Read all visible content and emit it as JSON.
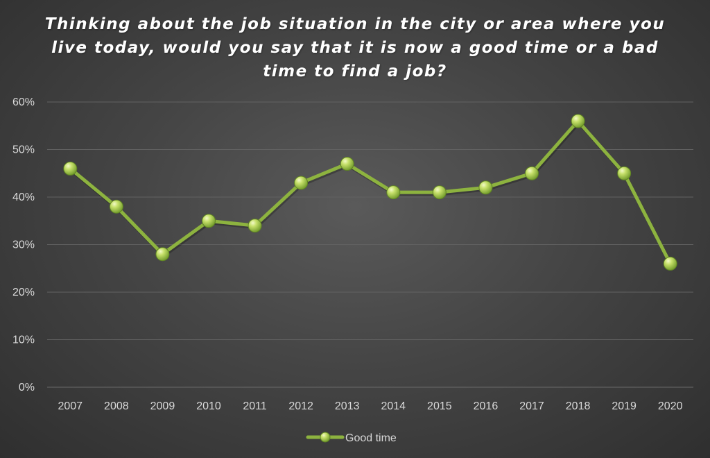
{
  "chart_data": {
    "type": "line",
    "title": "Thinking about the job situation in the city or area where you live today, would you say that it is now a good time or a bad time to find a job?",
    "categories": [
      "2007",
      "2008",
      "2009",
      "2010",
      "2011",
      "2012",
      "2013",
      "2014",
      "2015",
      "2016",
      "2017",
      "2018",
      "2019",
      "2020"
    ],
    "series": [
      {
        "name": "Good time",
        "color": "#8db33f",
        "values": [
          46,
          38,
          28,
          35,
          34,
          43,
          47,
          41,
          41,
          42,
          45,
          56,
          45,
          26
        ]
      }
    ],
    "ylim": [
      0,
      60
    ],
    "yticks": [
      "0%",
      "10%",
      "20%",
      "30%",
      "40%",
      "50%",
      "60%"
    ],
    "ytick_values": [
      0,
      10,
      20,
      30,
      40,
      50,
      60
    ],
    "xlabel": "",
    "ylabel": "",
    "grid": true,
    "legend": "bottom"
  }
}
